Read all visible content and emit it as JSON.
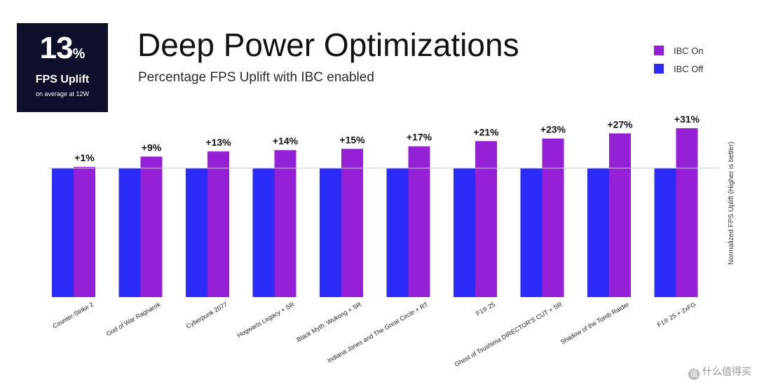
{
  "stat": {
    "number": "13",
    "unit": "%",
    "label": "FPS Uplift",
    "sublabel": "on average at 12W"
  },
  "watermark": "什么值得买",
  "colors": {
    "ibc_on": "#9521d6",
    "ibc_off": "#2b2cf7"
  },
  "chart_data": {
    "type": "bar",
    "title": "Deep Power Optimizations",
    "subtitle": "Percentage FPS Uplift with IBC enabled",
    "ylabel": "Normalized FPS Uplift (Higher is better)",
    "xlabel": "",
    "legend_position": "top-right",
    "grid": false,
    "ylim": [
      0,
      1.31
    ],
    "categories": [
      "Counter-Strike 2",
      "God of War Ragnarok",
      "Cyberpunk 2077",
      "Hogwarts Legacy + SR",
      "Black Myth: Wukong + SR",
      "Indiana Jones and The Great Circle + RT",
      "F1® 25",
      "Ghost of Tsushima DIRECTOR'S CUT + SR",
      "Shadow of the Tomb Raider",
      "F1® 25 + 2xFG"
    ],
    "series": [
      {
        "name": "IBC On",
        "color": "#9521d6",
        "values": [
          1.01,
          1.09,
          1.13,
          1.14,
          1.15,
          1.17,
          1.21,
          1.23,
          1.27,
          1.31
        ]
      },
      {
        "name": "IBC Off",
        "color": "#2b2cf7",
        "values": [
          1,
          1,
          1,
          1,
          1,
          1,
          1,
          1,
          1,
          1
        ]
      }
    ],
    "data_labels": [
      "+1%",
      "+9%",
      "+13%",
      "+14%",
      "+15%",
      "+17%",
      "+21%",
      "+23%",
      "+27%",
      "+31%"
    ]
  }
}
